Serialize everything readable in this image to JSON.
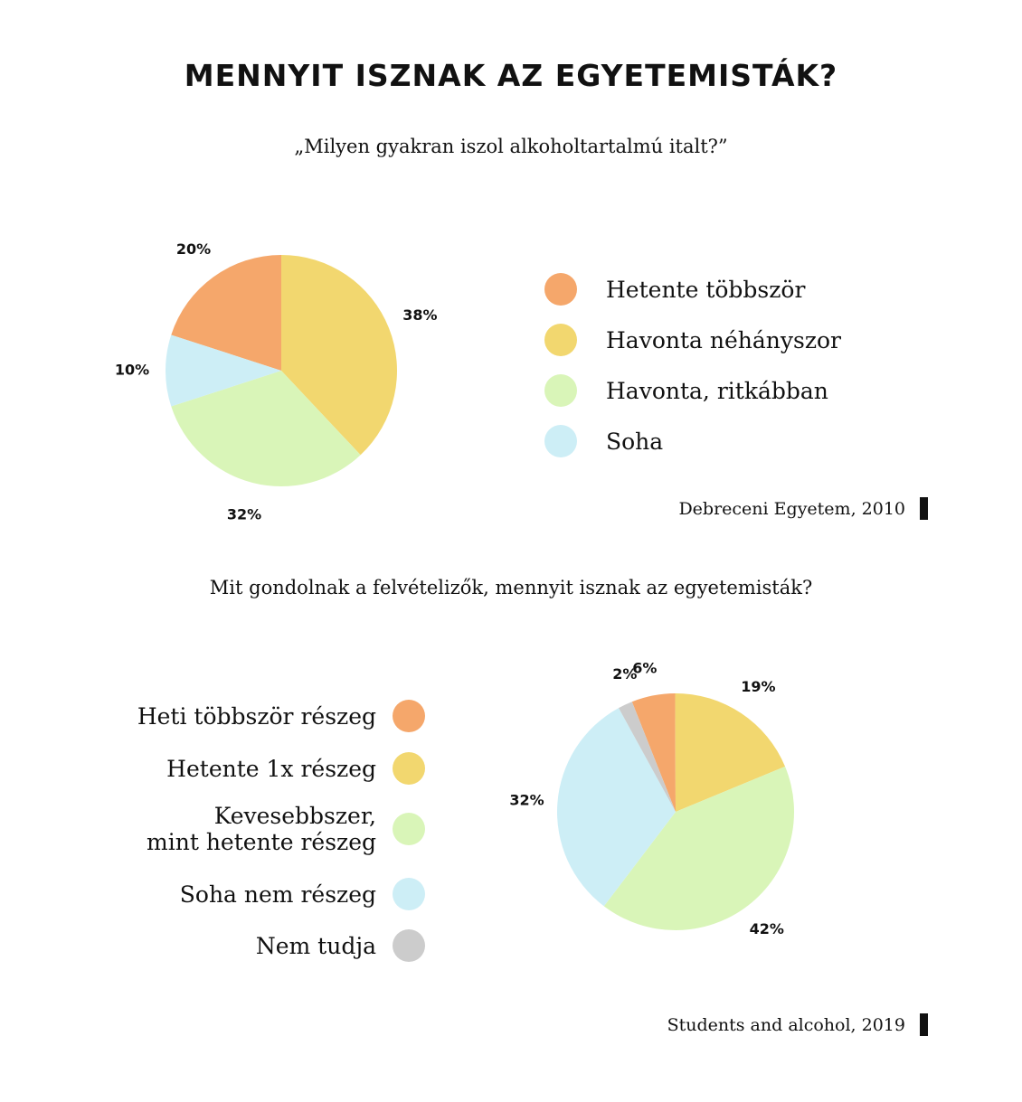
{
  "title": "MENNYIT ISZNAK AZ EGYETEMISTÁK?",
  "chart_data": [
    {
      "type": "pie",
      "title": "„Milyen gyakran iszol alkoholtartalmú italt?”",
      "categories": [
        "Hetente többször",
        "Havonta néhányszor",
        "Havonta, ritkábban",
        "Soha"
      ],
      "values": [
        20,
        38,
        32,
        10
      ],
      "value_labels": [
        "20%",
        "38%",
        "32%",
        "10%"
      ],
      "colors": [
        "#f5a76b",
        "#f2d76f",
        "#d9f5b8",
        "#cdeef6"
      ],
      "legend_position": "right",
      "source": "Debreceni Egyetem, 2010"
    },
    {
      "type": "pie",
      "title": "Mit gondolnak a felvételizők, mennyit isznak az egyetemisták?",
      "categories": [
        "Heti többször részeg",
        "Hetente 1x részeg",
        "Kevesebbszer, mint hetente részeg",
        "Soha nem részeg",
        "Nem tudja"
      ],
      "legend_lines": [
        [
          "Heti többször részeg"
        ],
        [
          "Hetente 1x részeg"
        ],
        [
          "Kevesebbszer,",
          "mint hetente részeg"
        ],
        [
          "Soha nem részeg"
        ],
        [
          "Nem tudja"
        ]
      ],
      "values": [
        6,
        19,
        42,
        32,
        2
      ],
      "value_labels": [
        "6%",
        "19%",
        "42%",
        "32%",
        "2%"
      ],
      "colors": [
        "#f5a76b",
        "#f2d76f",
        "#d9f5b8",
        "#cdeef6",
        "#cccccc"
      ],
      "legend_position": "left",
      "source": "Students and alcohol, 2019"
    }
  ]
}
